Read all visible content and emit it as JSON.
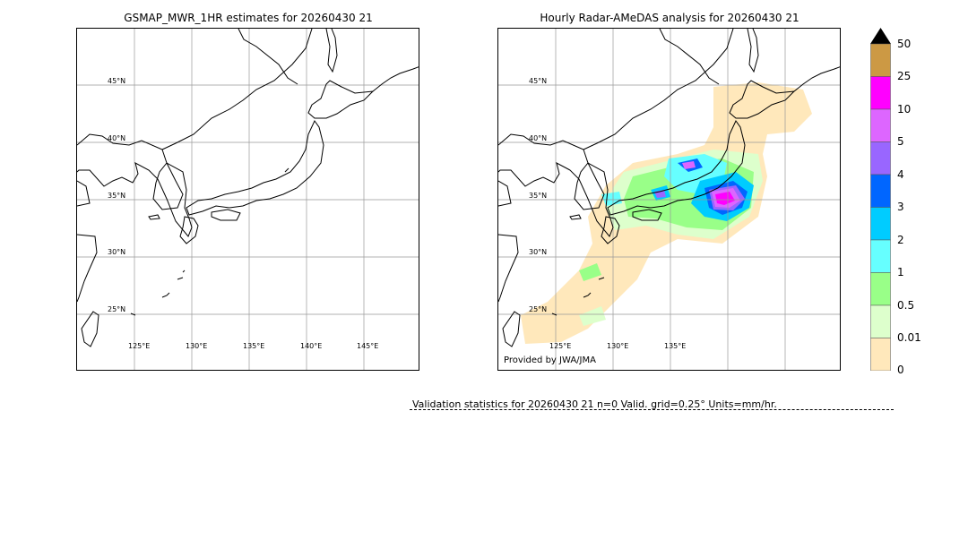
{
  "left_panel": {
    "title": "GSMAP_MWR_1HR estimates for 20260430 21",
    "lat_labels": [
      "45°N",
      "40°N",
      "35°N",
      "30°N",
      "25°N"
    ],
    "lon_labels": [
      "125°E",
      "130°E",
      "135°E",
      "140°E",
      "145°E"
    ]
  },
  "right_panel": {
    "title": "Hourly Radar-AMeDAS analysis for 20260430 21",
    "lat_labels": [
      "45°N",
      "40°N",
      "35°N",
      "30°N",
      "25°N"
    ],
    "lon_labels": [
      "125°E",
      "130°E",
      "135°E"
    ],
    "credit": "Provided by JWA/JMA"
  },
  "colorbar": {
    "labels": [
      "50",
      "25",
      "10",
      "5",
      "4",
      "3",
      "2",
      "1",
      "0.5",
      "0.01",
      "0"
    ],
    "colors": [
      "#cc9944",
      "#ff00ff",
      "#dd66ff",
      "#9966ff",
      "#0066ff",
      "#00ccff",
      "#66ffff",
      "#99ff88",
      "#ddffcc",
      "#ffe8bb"
    ],
    "extend_color": "#000000"
  },
  "validation": {
    "text": "Validation statistics for 20260430 21  n=0 Valid. grid=0.25° Units=mm/hr."
  }
}
